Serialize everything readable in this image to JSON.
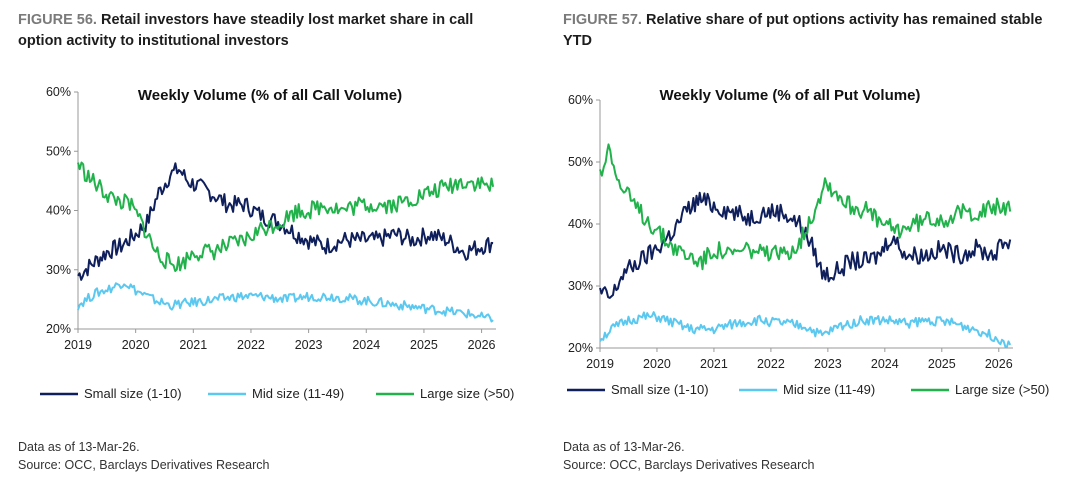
{
  "colors": {
    "small": "#0f1f5c",
    "mid": "#5bc8f0",
    "large": "#22b24c"
  },
  "figures": [
    {
      "number": "FIGURE 56.",
      "title": "Retail investors have steadily lost market share in call option activity to institutional investors",
      "note": "Data as of 13-Mar-26.",
      "source": "Source: OCC, Barclays Derivatives Research"
    },
    {
      "number": "FIGURE 57.",
      "title": "Relative share of put options activity has remained stable YTD",
      "note": "Data as of 13-Mar-26.",
      "source": "Source: OCC, Barclays Derivatives Research"
    }
  ],
  "chart_data": [
    {
      "type": "line",
      "title": "Weekly Volume (% of all Call Volume)",
      "xlabel": "",
      "ylabel": "",
      "xlim": [
        2019.0,
        2026.25
      ],
      "ylim": [
        20,
        60
      ],
      "x_ticks": [
        "2019",
        "2020",
        "2021",
        "2022",
        "2023",
        "2024",
        "2025",
        "2026"
      ],
      "y_ticks": [
        "20%",
        "30%",
        "40%",
        "50%",
        "60%"
      ],
      "legend": [
        "Small size (1-10)",
        "Mid size (11-49)",
        "Large size (>50)"
      ],
      "legend_position": "bottom",
      "series": [
        {
          "name": "Small size (1-10)",
          "color_key": "small",
          "points": [
            [
              2019.0,
              29
            ],
            [
              2019.25,
              31
            ],
            [
              2019.5,
              33
            ],
            [
              2019.75,
              34
            ],
            [
              2020.0,
              36
            ],
            [
              2020.2,
              38
            ],
            [
              2020.4,
              43
            ],
            [
              2020.6,
              46
            ],
            [
              2020.75,
              47
            ],
            [
              2020.9,
              45
            ],
            [
              2021.1,
              44
            ],
            [
              2021.3,
              43
            ],
            [
              2021.6,
              41
            ],
            [
              2021.9,
              41
            ],
            [
              2022.2,
              39
            ],
            [
              2022.5,
              38
            ],
            [
              2022.8,
              36
            ],
            [
              2023.0,
              35
            ],
            [
              2023.3,
              34
            ],
            [
              2023.6,
              35
            ],
            [
              2023.9,
              35
            ],
            [
              2024.2,
              35
            ],
            [
              2024.5,
              36
            ],
            [
              2024.8,
              35
            ],
            [
              2025.1,
              36
            ],
            [
              2025.4,
              35
            ],
            [
              2025.7,
              33
            ],
            [
              2026.0,
              34
            ],
            [
              2026.2,
              34.5
            ]
          ]
        },
        {
          "name": "Mid size (11-49)",
          "color_key": "mid",
          "points": [
            [
              2019.0,
              24
            ],
            [
              2019.3,
              26
            ],
            [
              2019.6,
              27
            ],
            [
              2019.8,
              28
            ],
            [
              2020.0,
              26.5
            ],
            [
              2020.3,
              25
            ],
            [
              2020.6,
              24
            ],
            [
              2021.0,
              24.5
            ],
            [
              2021.4,
              25
            ],
            [
              2021.8,
              25.5
            ],
            [
              2022.2,
              25.5
            ],
            [
              2022.6,
              25
            ],
            [
              2023.0,
              25.5
            ],
            [
              2023.4,
              25.5
            ],
            [
              2023.8,
              25
            ],
            [
              2024.2,
              24.5
            ],
            [
              2024.6,
              24
            ],
            [
              2025.0,
              23.5
            ],
            [
              2025.4,
              23
            ],
            [
              2025.8,
              22.5
            ],
            [
              2026.0,
              22
            ],
            [
              2026.2,
              21.5
            ]
          ]
        },
        {
          "name": "Large size (>50)",
          "color_key": "large",
          "points": [
            [
              2019.0,
              48
            ],
            [
              2019.15,
              46
            ],
            [
              2019.35,
              44
            ],
            [
              2019.6,
              42
            ],
            [
              2019.9,
              41
            ],
            [
              2020.1,
              38
            ],
            [
              2020.35,
              33
            ],
            [
              2020.6,
              31
            ],
            [
              2020.8,
              31
            ],
            [
              2021.0,
              33
            ],
            [
              2021.3,
              33
            ],
            [
              2021.6,
              34
            ],
            [
              2021.9,
              35
            ],
            [
              2022.2,
              37
            ],
            [
              2022.5,
              38
            ],
            [
              2022.8,
              40
            ],
            [
              2023.0,
              40
            ],
            [
              2023.3,
              41
            ],
            [
              2023.6,
              40
            ],
            [
              2023.9,
              41
            ],
            [
              2024.2,
              41
            ],
            [
              2024.5,
              41
            ],
            [
              2024.8,
              42
            ],
            [
              2025.1,
              43
            ],
            [
              2025.4,
              44
            ],
            [
              2025.7,
              45
            ],
            [
              2026.0,
              44.5
            ],
            [
              2026.2,
              44
            ]
          ]
        }
      ]
    },
    {
      "type": "line",
      "title": "Weekly Volume (% of all Put Volume)",
      "xlabel": "",
      "ylabel": "",
      "xlim": [
        2019.0,
        2026.25
      ],
      "ylim": [
        20,
        60
      ],
      "x_ticks": [
        "2019",
        "2020",
        "2021",
        "2022",
        "2023",
        "2024",
        "2025",
        "2026"
      ],
      "y_ticks": [
        "20%",
        "30%",
        "40%",
        "50%",
        "60%"
      ],
      "legend": [
        "Small size (1-10)",
        "Mid size (11-49)",
        "Large size (>50)"
      ],
      "legend_position": "bottom",
      "series": [
        {
          "name": "Small size (1-10)",
          "color_key": "small",
          "points": [
            [
              2019.0,
              29
            ],
            [
              2019.2,
              28
            ],
            [
              2019.4,
              32
            ],
            [
              2019.7,
              34
            ],
            [
              2020.0,
              36
            ],
            [
              2020.3,
              39
            ],
            [
              2020.5,
              42
            ],
            [
              2020.75,
              44
            ],
            [
              2021.0,
              43
            ],
            [
              2021.3,
              42
            ],
            [
              2021.6,
              41
            ],
            [
              2021.9,
              42
            ],
            [
              2022.2,
              42
            ],
            [
              2022.5,
              40
            ],
            [
              2022.75,
              36
            ],
            [
              2022.9,
              32
            ],
            [
              2023.1,
              32
            ],
            [
              2023.4,
              34
            ],
            [
              2023.7,
              34
            ],
            [
              2023.9,
              35
            ],
            [
              2024.1,
              38
            ],
            [
              2024.4,
              35
            ],
            [
              2024.7,
              35
            ],
            [
              2025.0,
              36
            ],
            [
              2025.3,
              35
            ],
            [
              2025.6,
              36
            ],
            [
              2025.9,
              35
            ],
            [
              2026.1,
              37
            ],
            [
              2026.2,
              37.5
            ]
          ]
        },
        {
          "name": "Mid size (11-49)",
          "color_key": "mid",
          "points": [
            [
              2019.0,
              21.5
            ],
            [
              2019.2,
              23
            ],
            [
              2019.5,
              24.5
            ],
            [
              2019.8,
              25
            ],
            [
              2020.0,
              25
            ],
            [
              2020.3,
              24
            ],
            [
              2020.6,
              23
            ],
            [
              2021.0,
              23
            ],
            [
              2021.4,
              24
            ],
            [
              2021.8,
              24.5
            ],
            [
              2022.2,
              24
            ],
            [
              2022.6,
              23.5
            ],
            [
              2022.9,
              22
            ],
            [
              2023.2,
              23.5
            ],
            [
              2023.6,
              24.5
            ],
            [
              2024.0,
              24.5
            ],
            [
              2024.4,
              24
            ],
            [
              2024.8,
              24.5
            ],
            [
              2025.2,
              24
            ],
            [
              2025.6,
              23
            ],
            [
              2026.0,
              21.5
            ],
            [
              2026.2,
              20.5
            ]
          ]
        },
        {
          "name": "Large size (>50)",
          "color_key": "large",
          "points": [
            [
              2019.0,
              48
            ],
            [
              2019.1,
              50
            ],
            [
              2019.15,
              54
            ],
            [
              2019.3,
              47
            ],
            [
              2019.6,
              43
            ],
            [
              2019.9,
              40
            ],
            [
              2020.2,
              37
            ],
            [
              2020.5,
              35
            ],
            [
              2020.8,
              34
            ],
            [
              2021.0,
              36
            ],
            [
              2021.3,
              35
            ],
            [
              2021.6,
              36
            ],
            [
              2021.9,
              35
            ],
            [
              2022.2,
              35
            ],
            [
              2022.5,
              37
            ],
            [
              2022.75,
              42
            ],
            [
              2022.95,
              47
            ],
            [
              2023.15,
              45
            ],
            [
              2023.4,
              43
            ],
            [
              2023.7,
              42
            ],
            [
              2023.95,
              40
            ],
            [
              2024.2,
              39
            ],
            [
              2024.5,
              40
            ],
            [
              2024.8,
              41
            ],
            [
              2025.1,
              41
            ],
            [
              2025.4,
              42
            ],
            [
              2025.7,
              42
            ],
            [
              2026.0,
              43
            ],
            [
              2026.2,
              42
            ]
          ]
        }
      ]
    }
  ]
}
